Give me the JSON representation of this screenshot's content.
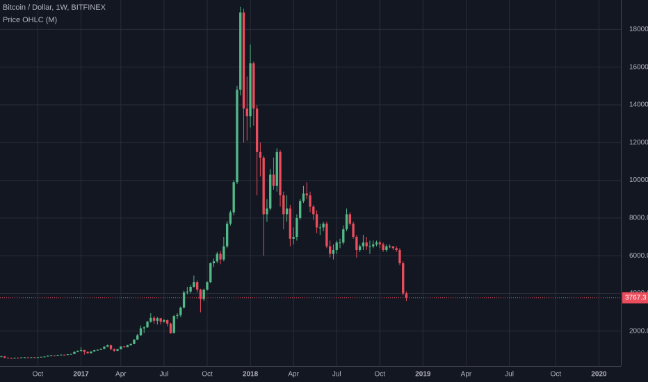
{
  "chart_data": {
    "type": "candlestick",
    "title": "Bitcoin / Dollar, 1W, BITFINEX",
    "subtitle": "Price OHLC (M)",
    "up_color": "#53b987",
    "down_color": "#eb4d5c",
    "grid": true,
    "ylim": [
      150,
      19560
    ],
    "yticks": [
      {
        "value": 2000,
        "label": "2000.0"
      },
      {
        "value": 4000,
        "label": "4000.0"
      },
      {
        "value": 6000,
        "label": "6000.0"
      },
      {
        "value": 8000,
        "label": "8000.0"
      },
      {
        "value": 10000,
        "label": "10000.0"
      },
      {
        "value": 12000,
        "label": "12000.0"
      },
      {
        "value": 14000,
        "label": "14000.0"
      },
      {
        "value": 16000,
        "label": "16000.0"
      },
      {
        "value": 18000,
        "label": "18000.0"
      }
    ],
    "categories": [
      null,
      null,
      null,
      null,
      null,
      null,
      null,
      null,
      null,
      null,
      null,
      "Oct",
      null,
      null,
      null,
      null,
      null,
      null,
      null,
      null,
      null,
      null,
      null,
      null,
      "2017",
      null,
      null,
      null,
      null,
      null,
      null,
      null,
      null,
      null,
      null,
      null,
      "Apr",
      null,
      null,
      null,
      null,
      null,
      null,
      null,
      null,
      null,
      null,
      null,
      null,
      "Jul",
      null,
      null,
      null,
      null,
      null,
      null,
      null,
      null,
      null,
      null,
      null,
      null,
      "Oct",
      null,
      null,
      null,
      null,
      null,
      null,
      null,
      null,
      null,
      null,
      null,
      null,
      "2018",
      null,
      null,
      null,
      null,
      null,
      null,
      null,
      null,
      null,
      null,
      null,
      null,
      "Apr",
      null,
      null,
      null,
      null,
      null,
      null,
      null,
      null,
      null,
      null,
      null,
      null,
      "Jul",
      null,
      null,
      null,
      null,
      null,
      null,
      null,
      null,
      null,
      null,
      null,
      null,
      "Oct",
      null,
      null,
      null,
      null,
      null,
      null,
      null,
      null,
      null,
      null,
      null,
      null,
      "2019",
      null,
      null,
      null,
      null,
      null,
      null,
      null,
      null,
      null,
      null,
      null,
      null,
      "Apr",
      null,
      null,
      null,
      null,
      null,
      null,
      null,
      null,
      null,
      null,
      null,
      null,
      "Jul",
      null,
      null,
      null,
      null,
      null,
      null,
      null,
      null,
      null,
      null,
      null,
      null,
      null,
      "Oct",
      null,
      null,
      null,
      null,
      null,
      null,
      null,
      null,
      null,
      null,
      null,
      null,
      "2020",
      null,
      null,
      null,
      null,
      null,
      null
    ],
    "open": [
      650,
      660,
      590,
      575,
      570,
      585,
      575,
      605,
      608,
      600,
      610,
      605,
      615,
      640,
      650,
      700,
      715,
      700,
      740,
      750,
      735,
      770,
      790,
      900,
      960,
      1000,
      900,
      830,
      920,
      990,
      1010,
      1060,
      1180,
      1250,
      1050,
      960,
      1040,
      1190,
      1150,
      1250,
      1330,
      1550,
      1780,
      2150,
      2200,
      2500,
      2700,
      2550,
      2680,
      2500,
      2580,
      2400,
      1900,
      2800,
      2850,
      3250,
      4050,
      4100,
      4350,
      4600,
      4200,
      3700,
      4200,
      4600,
      5600,
      5700,
      6100,
      5800,
      6500,
      7700,
      8300,
      9900,
      14800,
      18900,
      13800,
      13400,
      16200,
      13800,
      11500,
      11200,
      8200,
      8500,
      10300,
      9700,
      11500,
      9200,
      8200,
      8500,
      6900,
      7000,
      8000,
      8900,
      9300,
      9200,
      8600,
      8200,
      7500,
      7500,
      7700,
      6500,
      6100,
      6300,
      6700,
      6700,
      7400,
      8200,
      7700,
      7000,
      6300,
      6500,
      6700,
      6500,
      6500,
      6600,
      6700,
      6600,
      6300,
      6500,
      6500,
      6400,
      6300,
      5600,
      4000,
      null,
      null,
      null,
      null,
      null,
      null,
      null,
      null,
      null,
      null,
      null,
      null,
      null,
      null,
      null,
      null,
      null,
      null,
      null,
      null,
      null,
      null,
      null,
      null,
      null,
      null,
      null,
      null,
      null,
      null,
      null,
      null,
      null,
      null,
      null,
      null,
      null,
      null,
      null,
      null,
      null,
      null,
      null,
      null,
      null,
      null,
      null,
      null,
      null,
      null,
      null,
      null,
      null,
      null,
      null,
      null,
      null,
      null,
      null,
      null,
      null,
      null,
      null,
      null
    ],
    "high": [
      690,
      680,
      600,
      590,
      600,
      600,
      615,
      630,
      620,
      620,
      625,
      630,
      645,
      665,
      715,
      740,
      725,
      745,
      765,
      760,
      780,
      800,
      920,
      975,
      1150,
      1010,
      930,
      930,
      1010,
      1030,
      1080,
      1200,
      1290,
      1280,
      1080,
      1060,
      1210,
      1220,
      1270,
      1350,
      1580,
      1850,
      2300,
      2260,
      2550,
      2950,
      2800,
      2750,
      2700,
      2650,
      2620,
      2450,
      2850,
      2950,
      3300,
      4150,
      4350,
      4450,
      4950,
      4700,
      4250,
      4250,
      4650,
      5650,
      5850,
      6200,
      6250,
      7000,
      7850,
      8400,
      10000,
      15000,
      19200,
      19100,
      15500,
      17200,
      16300,
      14000,
      12000,
      11300,
      9000,
      10600,
      11200,
      11700,
      11600,
      9400,
      9200,
      8700,
      7500,
      8200,
      9000,
      9700,
      9900,
      9400,
      8700,
      8400,
      7700,
      7800,
      7800,
      6800,
      6600,
      6800,
      6900,
      7600,
      8500,
      8300,
      7800,
      7100,
      6600,
      7100,
      7000,
      6800,
      6800,
      6800,
      6800,
      6700,
      6600,
      6600,
      6500,
      6500,
      6400,
      5700,
      4100,
      null,
      null,
      null,
      null,
      null,
      null,
      null,
      null,
      null,
      null,
      null,
      null,
      null,
      null,
      null,
      null,
      null,
      null,
      null,
      null,
      null,
      null,
      null,
      null,
      null,
      null,
      null,
      null,
      null,
      null,
      null,
      null,
      null,
      null,
      null,
      null,
      null,
      null,
      null,
      null,
      null,
      null,
      null,
      null,
      null,
      null,
      null,
      null,
      null,
      null,
      null,
      null,
      null,
      null,
      null,
      null,
      null,
      null,
      null,
      null,
      null,
      null,
      null,
      null
    ],
    "low": [
      630,
      570,
      560,
      560,
      560,
      565,
      570,
      595,
      590,
      595,
      600,
      600,
      610,
      630,
      645,
      690,
      690,
      695,
      730,
      725,
      730,
      760,
      785,
      880,
      890,
      750,
      800,
      820,
      910,
      970,
      1000,
      1050,
      1150,
      980,
      900,
      930,
      1030,
      1120,
      1140,
      1230,
      1320,
      1540,
      1750,
      1900,
      2180,
      2450,
      2400,
      2350,
      2350,
      2450,
      2250,
      1850,
      1880,
      2650,
      2750,
      3200,
      3950,
      4000,
      4300,
      4050,
      3000,
      3600,
      4150,
      4550,
      5400,
      5600,
      5550,
      5700,
      6400,
      7600,
      8150,
      9800,
      14500,
      12000,
      12100,
      12800,
      12900,
      9200,
      10200,
      6000,
      7800,
      8400,
      9500,
      9400,
      8600,
      7400,
      7800,
      6500,
      6600,
      6800,
      7900,
      8800,
      9000,
      8300,
      7900,
      7200,
      7100,
      7300,
      6400,
      5900,
      5800,
      6100,
      6400,
      6600,
      7300,
      7600,
      6900,
      5900,
      6200,
      6300,
      6300,
      6100,
      6400,
      6500,
      6400,
      6200,
      6200,
      6400,
      6300,
      6200,
      5500,
      3900,
      3600,
      null,
      null,
      null,
      null,
      null,
      null,
      null,
      null,
      null,
      null,
      null,
      null,
      null,
      null,
      null,
      null,
      null,
      null,
      null,
      null,
      null,
      null,
      null,
      null,
      null,
      null,
      null,
      null,
      null,
      null,
      null,
      null,
      null,
      null,
      null,
      null,
      null,
      null,
      null,
      null,
      null,
      null,
      null,
      null,
      null,
      null,
      null,
      null,
      null,
      null,
      null,
      null,
      null,
      null,
      null,
      null,
      null,
      null,
      null,
      null,
      null,
      null,
      null,
      null
    ],
    "close": [
      660,
      590,
      575,
      570,
      585,
      575,
      605,
      608,
      600,
      610,
      605,
      615,
      640,
      650,
      700,
      715,
      700,
      740,
      750,
      735,
      770,
      790,
      900,
      960,
      1000,
      900,
      830,
      920,
      990,
      1010,
      1060,
      1180,
      1250,
      1050,
      960,
      1040,
      1190,
      1150,
      1250,
      1330,
      1550,
      1780,
      2150,
      2200,
      2500,
      2700,
      2550,
      2680,
      2500,
      2580,
      2400,
      1900,
      2800,
      2850,
      3250,
      4050,
      4100,
      4350,
      4600,
      4200,
      3700,
      4200,
      4600,
      5600,
      5700,
      6100,
      5800,
      6500,
      7700,
      8300,
      9900,
      14800,
      18900,
      13800,
      13400,
      16200,
      13800,
      11500,
      11200,
      8200,
      8500,
      10300,
      9700,
      11500,
      9200,
      8200,
      8500,
      6900,
      7000,
      8000,
      8900,
      9300,
      9200,
      8600,
      8200,
      7500,
      7500,
      7700,
      6500,
      6100,
      6300,
      6700,
      6700,
      7400,
      8200,
      7700,
      7000,
      6300,
      6500,
      6700,
      6500,
      6500,
      6600,
      6700,
      6600,
      6300,
      6500,
      6500,
      6400,
      6300,
      5600,
      4000,
      3767.3,
      null,
      null,
      null,
      null,
      null,
      null,
      null,
      null,
      null,
      null,
      null,
      null,
      null,
      null,
      null,
      null,
      null,
      null,
      null,
      null,
      null,
      null,
      null,
      null,
      null,
      null,
      null,
      null,
      null,
      null,
      null,
      null,
      null,
      null,
      null,
      null,
      null,
      null,
      null,
      null,
      null,
      null,
      null,
      null,
      null,
      null,
      null,
      null,
      null,
      null,
      null,
      null,
      null,
      null,
      null,
      null,
      null,
      null,
      null,
      null,
      null,
      null,
      null,
      null
    ]
  }
}
